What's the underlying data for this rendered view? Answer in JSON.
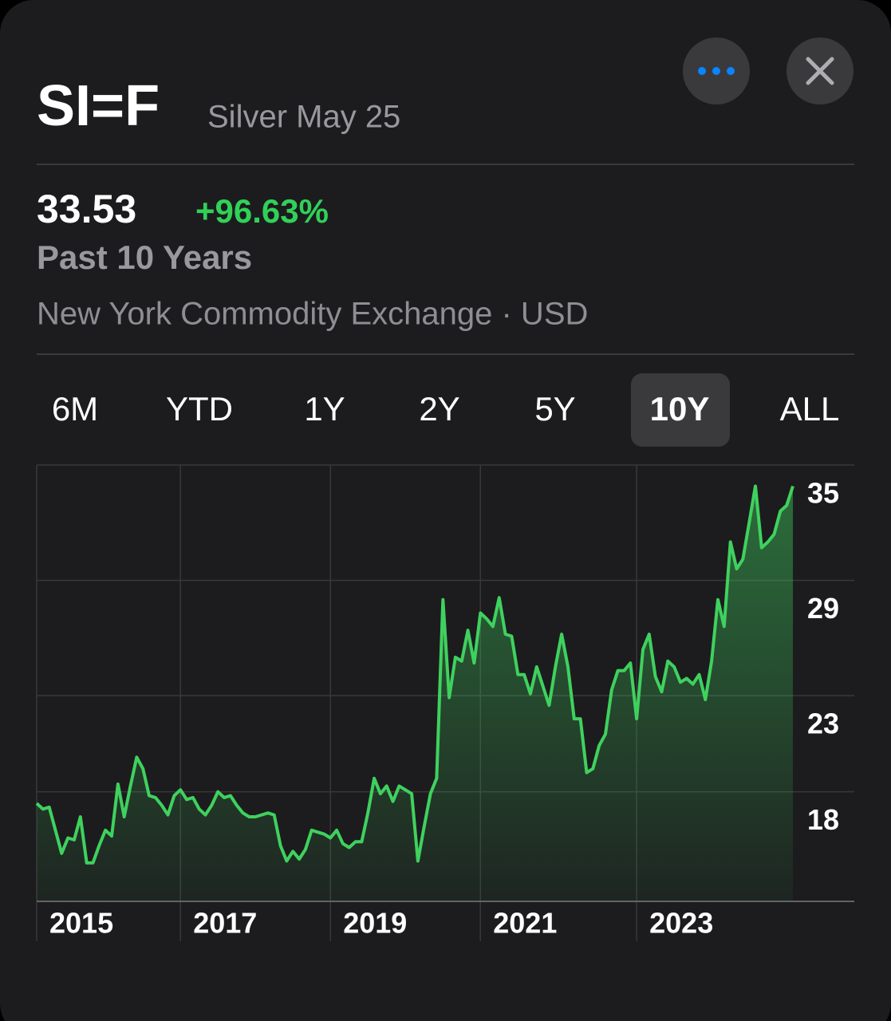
{
  "header": {
    "symbol": "SI=F",
    "name": "Silver May 25"
  },
  "quote": {
    "price": "33.53",
    "change": "+96.63%",
    "period": "Past 10 Years",
    "exchange": "New York Commodity Exchange · USD"
  },
  "ranges": [
    "6M",
    "YTD",
    "1Y",
    "2Y",
    "5Y",
    "10Y",
    "ALL"
  ],
  "selected_range": "10Y",
  "chart_data": {
    "type": "line",
    "color": "#3fd15e",
    "values": [
      17.4,
      17.1,
      17.2,
      16.0,
      14.8,
      15.6,
      15.5,
      16.7,
      14.3,
      14.3,
      15.2,
      16.0,
      15.7,
      18.4,
      16.7,
      18.3,
      19.8,
      19.2,
      17.8,
      17.7,
      17.3,
      16.8,
      17.8,
      18.1,
      17.6,
      17.7,
      17.1,
      16.8,
      17.3,
      18.0,
      17.7,
      17.8,
      17.3,
      16.9,
      16.7,
      16.7,
      16.8,
      16.9,
      16.8,
      15.2,
      14.4,
      14.9,
      14.5,
      15.0,
      16.0,
      15.9,
      15.8,
      15.6,
      16.0,
      15.3,
      15.1,
      15.4,
      15.4,
      16.9,
      18.7,
      17.9,
      18.3,
      17.5,
      18.3,
      18.1,
      17.9,
      14.4,
      16.2,
      17.9,
      18.7,
      28.0,
      22.9,
      25.0,
      24.8,
      26.4,
      24.7,
      27.3,
      27.0,
      26.6,
      28.1,
      26.2,
      26.1,
      24.1,
      24.1,
      23.1,
      24.5,
      23.5,
      22.5,
      24.5,
      26.2,
      24.5,
      21.8,
      21.8,
      19.0,
      19.2,
      20.4,
      21.0,
      23.3,
      24.3,
      24.3,
      24.7,
      21.8,
      25.4,
      26.2,
      24.0,
      23.2,
      24.8,
      24.5,
      23.7,
      23.9,
      23.6,
      24.1,
      22.8,
      24.8,
      28.0,
      26.6,
      31.0,
      29.6,
      30.1,
      32.0,
      33.9,
      30.7,
      31.0,
      31.4,
      32.6,
      32.9,
      33.9
    ],
    "ylim": [
      12.3,
      35
    ],
    "yticks": [
      35,
      29,
      23,
      18
    ],
    "xticks": [
      {
        "value": 0,
        "label": "2015"
      },
      {
        "value": 23,
        "label": "2017"
      },
      {
        "value": 47,
        "label": "2019"
      },
      {
        "value": 71,
        "label": "2021"
      },
      {
        "value": 96,
        "label": "2023"
      }
    ],
    "grid": true
  }
}
